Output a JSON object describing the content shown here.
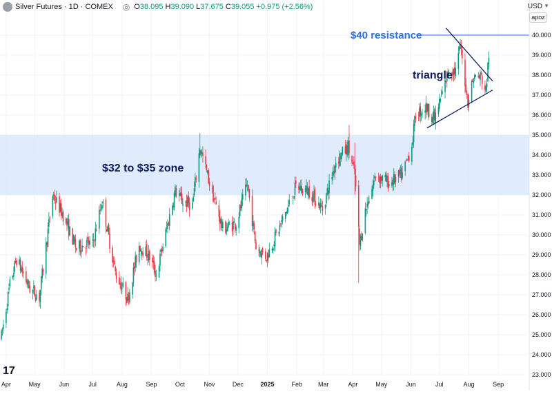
{
  "header": {
    "title": "Silver Futures · 1D · COMEX",
    "open_label": "O",
    "open": "38.095",
    "high_label": "H",
    "high": "39.090",
    "low_label": "L",
    "low": "37.675",
    "close_label": "C",
    "close": "39.055",
    "change": "+0.975 (+2.56%)"
  },
  "currency": "USD",
  "scale_button": "apoz",
  "colors": {
    "up": "#089981",
    "down": "#f23645",
    "zone": "#dbe8fc",
    "resistance": "#2962ff",
    "annotation_dark": "#0d1b5e",
    "annotation_blue": "#2b6fe0",
    "grid": "#f0f3fa"
  },
  "chart_data": {
    "type": "candlestick",
    "ylim": [
      23,
      41
    ],
    "yticks": [
      "23.000",
      "24.000",
      "25.000",
      "26.000",
      "27.000",
      "28.000",
      "29.000",
      "30.000",
      "31.000",
      "32.000",
      "33.000",
      "34.000",
      "35.000",
      "36.000",
      "37.000",
      "38.000",
      "39.000",
      "40.000"
    ],
    "xticks": [
      "Apr",
      "May",
      "Jun",
      "Jul",
      "Aug",
      "Sep",
      "Oct",
      "Nov",
      "Dec",
      "2025",
      "Feb",
      "Mar",
      "Apr",
      "May",
      "Jun",
      "Jul",
      "Aug",
      "Sep"
    ],
    "date_range": [
      "2024-03-27",
      "2025-08-22"
    ],
    "series_anchors": [
      [
        "2024-03-27",
        24.9
      ],
      [
        "2024-04-05",
        27.5
      ],
      [
        "2024-04-12",
        28.8
      ],
      [
        "2024-04-26",
        27.3
      ],
      [
        "2024-05-06",
        26.9
      ],
      [
        "2024-05-20",
        32.0
      ],
      [
        "2024-05-31",
        31.0
      ],
      [
        "2024-06-14",
        29.3
      ],
      [
        "2024-06-24",
        29.6
      ],
      [
        "2024-07-01",
        29.5
      ],
      [
        "2024-07-11",
        31.7
      ],
      [
        "2024-07-25",
        28.1
      ],
      [
        "2024-08-07",
        26.8
      ],
      [
        "2024-08-19",
        29.5
      ],
      [
        "2024-08-30",
        28.9
      ],
      [
        "2024-09-06",
        28.0
      ],
      [
        "2024-09-26",
        32.2
      ],
      [
        "2024-10-03",
        31.7
      ],
      [
        "2024-10-14",
        31.5
      ],
      [
        "2024-10-22",
        34.4
      ],
      [
        "2024-11-01",
        32.6
      ],
      [
        "2024-11-15",
        30.3
      ],
      [
        "2024-11-29",
        30.6
      ],
      [
        "2024-12-11",
        32.5
      ],
      [
        "2024-12-20",
        29.4
      ],
      [
        "2024-12-31",
        28.9
      ],
      [
        "2025-01-15",
        30.5
      ],
      [
        "2025-01-31",
        32.4
      ],
      [
        "2025-02-14",
        32.2
      ],
      [
        "2025-02-28",
        31.3
      ],
      [
        "2025-03-14",
        33.7
      ],
      [
        "2025-03-27",
        34.4
      ],
      [
        "2025-04-03",
        33.0
      ],
      [
        "2025-04-08",
        29.5
      ],
      [
        "2025-04-14",
        31.2
      ],
      [
        "2025-04-25",
        33.0
      ],
      [
        "2025-05-09",
        32.6
      ],
      [
        "2025-05-23",
        33.0
      ],
      [
        "2025-06-02",
        34.5
      ],
      [
        "2025-06-06",
        36.0
      ],
      [
        "2025-06-17",
        36.4
      ],
      [
        "2025-06-26",
        35.8
      ],
      [
        "2025-07-03",
        36.9
      ],
      [
        "2025-07-11",
        38.3
      ],
      [
        "2025-07-18",
        38.2
      ],
      [
        "2025-07-23",
        39.4
      ],
      [
        "2025-07-31",
        36.7
      ],
      [
        "2025-08-06",
        37.9
      ],
      [
        "2025-08-14",
        37.9
      ],
      [
        "2025-08-19",
        37.2
      ],
      [
        "2025-08-22",
        39.05
      ]
    ],
    "zone": {
      "from": 32,
      "to": 35,
      "label": "$32 to $35 zone"
    },
    "resistance": {
      "value": 40,
      "label": "$40 resistance"
    },
    "triangle": {
      "label": "triangle",
      "upper": [
        [
          "2025-07-08",
          40.35
        ],
        [
          "2025-08-26",
          37.7
        ]
      ],
      "lower": [
        [
          "2025-06-18",
          35.35
        ],
        [
          "2025-08-26",
          37.25
        ]
      ]
    }
  }
}
